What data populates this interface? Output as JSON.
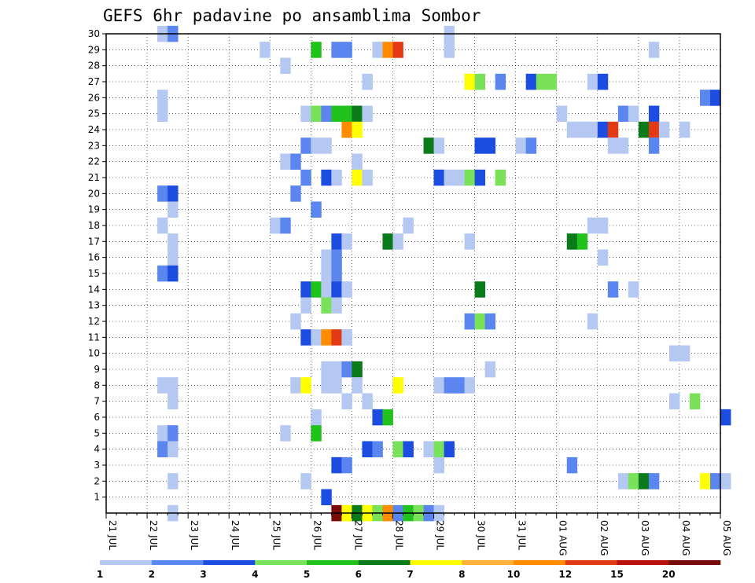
{
  "chart_data": {
    "type": "heatmap",
    "title": "GEFS 6hr padavine po ansamblima Sombor",
    "x_tick_labels": [
      "21 JUL",
      "22 JUL",
      "23 JUL",
      "24 JUL",
      "25 JUL",
      "26 JUL",
      "27 JUL",
      "28 JUL",
      "29 JUL",
      "30 JUL",
      "31 JUL",
      "01 AUG",
      "02 AUG",
      "03 AUG",
      "04 AUG",
      "05 AUG"
    ],
    "y_tick_labels": [
      "1",
      "2",
      "3",
      "4",
      "5",
      "6",
      "7",
      "8",
      "9",
      "10",
      "11",
      "12",
      "13",
      "14",
      "15",
      "16",
      "17",
      "18",
      "19",
      "20",
      "21",
      "22",
      "23",
      "24",
      "25",
      "26",
      "27",
      "28",
      "29",
      "30"
    ],
    "x_step_hours": 6,
    "grid": true,
    "colorbar": {
      "levels": [
        "1",
        "2",
        "3",
        "4",
        "5",
        "6",
        "7",
        "8",
        "10",
        "12",
        "15",
        "20"
      ],
      "colors": [
        "#b5c8f2",
        "#5b86ef",
        "#1d4de0",
        "#79e15a",
        "#22c21c",
        "#0a7a1a",
        "#ffff00",
        "#ffb13c",
        "#ff8c00",
        "#e23a14",
        "#b8100e",
        "#780a0a"
      ]
    },
    "cells": [
      {
        "m": 30,
        "t": [
          [
            5,
            0
          ],
          [
            6,
            1
          ],
          [
            33,
            0
          ]
        ]
      },
      {
        "m": 29,
        "t": [
          [
            15,
            0
          ],
          [
            20,
            4
          ],
          [
            22,
            1
          ],
          [
            23,
            1
          ],
          [
            26,
            0
          ],
          [
            27,
            8
          ],
          [
            28,
            9
          ],
          [
            33,
            0
          ],
          [
            53,
            0
          ]
        ]
      },
      {
        "m": 28,
        "t": [
          [
            17,
            0
          ]
        ]
      },
      {
        "m": 27,
        "t": [
          [
            25,
            0
          ],
          [
            35,
            6
          ],
          [
            36,
            3
          ],
          [
            38,
            1
          ],
          [
            41,
            2
          ],
          [
            42,
            3
          ],
          [
            43,
            3
          ],
          [
            47,
            0
          ],
          [
            48,
            2
          ]
        ]
      },
      {
        "m": 26,
        "t": [
          [
            5,
            0
          ],
          [
            58,
            1
          ],
          [
            59,
            2
          ]
        ]
      },
      {
        "m": 25,
        "t": [
          [
            5,
            0
          ],
          [
            19,
            0
          ],
          [
            20,
            3
          ],
          [
            21,
            1
          ],
          [
            22,
            4
          ],
          [
            23,
            4
          ],
          [
            24,
            5
          ],
          [
            25,
            0
          ],
          [
            44,
            0
          ],
          [
            50,
            1
          ],
          [
            51,
            0
          ],
          [
            53,
            2
          ]
        ]
      },
      {
        "m": 24,
        "t": [
          [
            23,
            8
          ],
          [
            24,
            6
          ],
          [
            45,
            0
          ],
          [
            46,
            0
          ],
          [
            47,
            0
          ],
          [
            48,
            2
          ],
          [
            49,
            9
          ],
          [
            52,
            5
          ],
          [
            53,
            9
          ],
          [
            54,
            0
          ],
          [
            56,
            0
          ]
        ]
      },
      {
        "m": 23,
        "t": [
          [
            19,
            1
          ],
          [
            20,
            0
          ],
          [
            21,
            0
          ],
          [
            31,
            5
          ],
          [
            32,
            0
          ],
          [
            36,
            2
          ],
          [
            37,
            2
          ],
          [
            40,
            0
          ],
          [
            41,
            1
          ],
          [
            49,
            0
          ],
          [
            50,
            0
          ],
          [
            53,
            1
          ]
        ]
      },
      {
        "m": 22,
        "t": [
          [
            17,
            0
          ],
          [
            18,
            1
          ],
          [
            24,
            0
          ]
        ]
      },
      {
        "m": 21,
        "t": [
          [
            19,
            1
          ],
          [
            21,
            2
          ],
          [
            22,
            0
          ],
          [
            24,
            6
          ],
          [
            25,
            0
          ],
          [
            32,
            2
          ],
          [
            33,
            0
          ],
          [
            34,
            0
          ],
          [
            35,
            3
          ],
          [
            36,
            2
          ],
          [
            38,
            3
          ]
        ]
      },
      {
        "m": 20,
        "t": [
          [
            5,
            1
          ],
          [
            6,
            2
          ],
          [
            18,
            1
          ]
        ]
      },
      {
        "m": 19,
        "t": [
          [
            6,
            0
          ],
          [
            20,
            1
          ]
        ]
      },
      {
        "m": 18,
        "t": [
          [
            5,
            0
          ],
          [
            16,
            0
          ],
          [
            17,
            1
          ],
          [
            29,
            0
          ],
          [
            47,
            0
          ],
          [
            48,
            0
          ]
        ]
      },
      {
        "m": 17,
        "t": [
          [
            6,
            0
          ],
          [
            22,
            2
          ],
          [
            23,
            0
          ],
          [
            27,
            5
          ],
          [
            28,
            0
          ],
          [
            35,
            0
          ],
          [
            45,
            5
          ],
          [
            46,
            4
          ]
        ]
      },
      {
        "m": 16,
        "t": [
          [
            6,
            0
          ],
          [
            21,
            0
          ],
          [
            22,
            1
          ],
          [
            48,
            0
          ]
        ]
      },
      {
        "m": 15,
        "t": [
          [
            5,
            1
          ],
          [
            6,
            2
          ],
          [
            21,
            0
          ],
          [
            22,
            1
          ]
        ]
      },
      {
        "m": 14,
        "t": [
          [
            19,
            2
          ],
          [
            20,
            4
          ],
          [
            21,
            0
          ],
          [
            22,
            2
          ],
          [
            23,
            0
          ],
          [
            36,
            5
          ],
          [
            49,
            1
          ],
          [
            51,
            0
          ]
        ]
      },
      {
        "m": 13,
        "t": [
          [
            19,
            0
          ],
          [
            21,
            3
          ],
          [
            22,
            0
          ]
        ]
      },
      {
        "m": 12,
        "t": [
          [
            18,
            0
          ],
          [
            35,
            1
          ],
          [
            36,
            3
          ],
          [
            37,
            1
          ],
          [
            47,
            0
          ]
        ]
      },
      {
        "m": 11,
        "t": [
          [
            19,
            2
          ],
          [
            20,
            0
          ],
          [
            21,
            8
          ],
          [
            22,
            9
          ],
          [
            23,
            0
          ]
        ]
      },
      {
        "m": 10,
        "t": [
          [
            55,
            0
          ],
          [
            56,
            0
          ]
        ]
      },
      {
        "m": 9,
        "t": [
          [
            21,
            0
          ],
          [
            22,
            0
          ],
          [
            23,
            1
          ],
          [
            24,
            5
          ],
          [
            37,
            0
          ]
        ]
      },
      {
        "m": 8,
        "t": [
          [
            5,
            0
          ],
          [
            6,
            0
          ],
          [
            18,
            0
          ],
          [
            19,
            6
          ],
          [
            21,
            0
          ],
          [
            22,
            0
          ],
          [
            24,
            0
          ],
          [
            28,
            6
          ],
          [
            32,
            0
          ],
          [
            33,
            1
          ],
          [
            34,
            1
          ],
          [
            35,
            0
          ]
        ]
      },
      {
        "m": 7,
        "t": [
          [
            6,
            0
          ],
          [
            23,
            0
          ],
          [
            25,
            0
          ],
          [
            55,
            0
          ],
          [
            57,
            3
          ]
        ]
      },
      {
        "m": 6,
        "t": [
          [
            20,
            0
          ],
          [
            26,
            2
          ],
          [
            27,
            4
          ],
          [
            60,
            2
          ]
        ]
      },
      {
        "m": 5,
        "t": [
          [
            5,
            0
          ],
          [
            6,
            1
          ],
          [
            17,
            0
          ],
          [
            20,
            4
          ]
        ]
      },
      {
        "m": 4,
        "t": [
          [
            5,
            1
          ],
          [
            6,
            0
          ],
          [
            25,
            2
          ],
          [
            26,
            1
          ],
          [
            28,
            3
          ],
          [
            29,
            2
          ],
          [
            31,
            0
          ],
          [
            32,
            3
          ],
          [
            33,
            2
          ]
        ]
      },
      {
        "m": 3,
        "t": [
          [
            22,
            2
          ],
          [
            23,
            1
          ],
          [
            32,
            0
          ],
          [
            45,
            1
          ]
        ]
      },
      {
        "m": 2,
        "t": [
          [
            6,
            0
          ],
          [
            19,
            0
          ],
          [
            50,
            0
          ],
          [
            51,
            3
          ],
          [
            52,
            5
          ],
          [
            53,
            1
          ],
          [
            58,
            6
          ],
          [
            59,
            1
          ],
          [
            60,
            0
          ]
        ]
      },
      {
        "m": 1,
        "t": [
          [
            21,
            2
          ]
        ]
      },
      {
        "m": 0,
        "t": [
          [
            6,
            0
          ],
          [
            22,
            11
          ],
          [
            23,
            6
          ],
          [
            24,
            5
          ],
          [
            25,
            6
          ],
          [
            26,
            3
          ],
          [
            27,
            8
          ],
          [
            28,
            1
          ],
          [
            29,
            4
          ],
          [
            30,
            3
          ],
          [
            31,
            1
          ],
          [
            32,
            0
          ]
        ]
      }
    ]
  }
}
